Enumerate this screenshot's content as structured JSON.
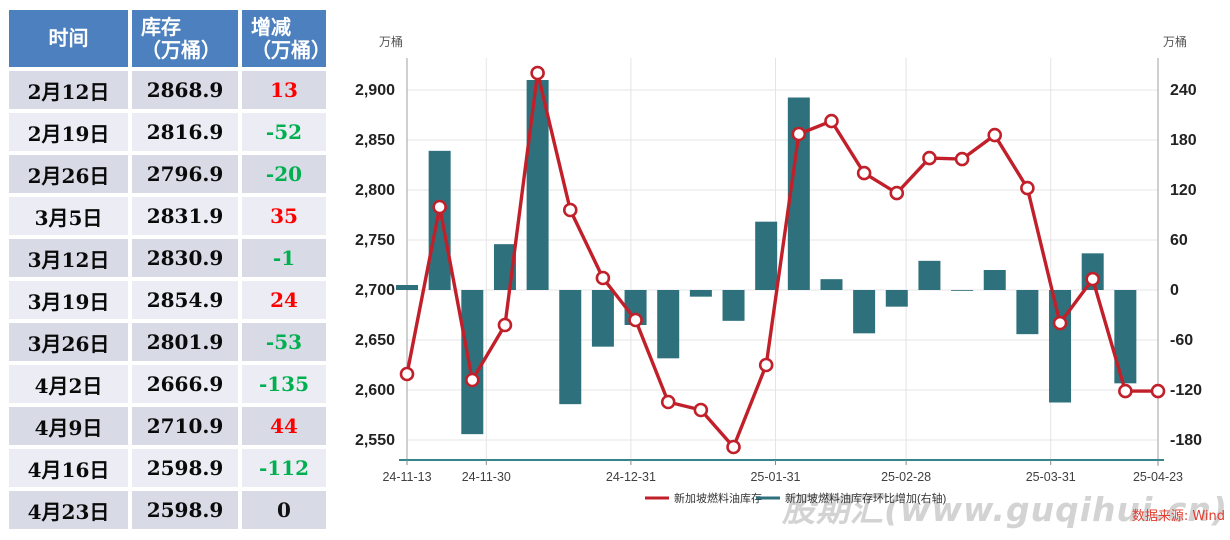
{
  "table": {
    "header": {
      "col1": "时间",
      "col2_line1": "库存",
      "col2_line2": "（万桶）",
      "col3_line1": "增减",
      "col3_line2": "（万桶）"
    },
    "rows": [
      {
        "time": "2月12日",
        "inventory": "2868.9",
        "change": "13"
      },
      {
        "time": "2月19日",
        "inventory": "2816.9",
        "change": "-52"
      },
      {
        "time": "2月26日",
        "inventory": "2796.9",
        "change": "-20"
      },
      {
        "time": "3月5日",
        "inventory": "2831.9",
        "change": "35"
      },
      {
        "time": "3月12日",
        "inventory": "2830.9",
        "change": "-1"
      },
      {
        "time": "3月19日",
        "inventory": "2854.9",
        "change": "24"
      },
      {
        "time": "3月26日",
        "inventory": "2801.9",
        "change": "-53"
      },
      {
        "time": "4月2日",
        "inventory": "2666.9",
        "change": "-135"
      },
      {
        "time": "4月9日",
        "inventory": "2710.9",
        "change": "44"
      },
      {
        "time": "4月16日",
        "inventory": "2598.9",
        "change": "-112"
      },
      {
        "time": "4月23日",
        "inventory": "2598.9",
        "change": "0"
      }
    ]
  },
  "colors": {
    "positive": "#ff0000",
    "negative": "#00b050",
    "zero": "#111111",
    "header_bg": "#4d80be",
    "row_dark": "#d8dae6",
    "row_light": "#ecedf4"
  },
  "chart_data": {
    "type": "line+bar",
    "unit_left": "万桶",
    "unit_right": "万桶",
    "x_tick_labels": [
      "24-11-13",
      "24-11-30",
      "24-12-31",
      "25-01-31",
      "25-02-28",
      "25-03-31",
      "25-04-23"
    ],
    "dates": [
      "24-11-13",
      "24-11-20",
      "24-11-27",
      "24-12-04",
      "24-12-11",
      "24-12-18",
      "24-12-25",
      "25-01-01",
      "25-01-08",
      "25-01-15",
      "25-01-22",
      "25-01-29",
      "25-02-05",
      "25-02-12",
      "25-02-19",
      "25-02-26",
      "25-03-05",
      "25-03-12",
      "25-03-19",
      "25-03-26",
      "25-04-02",
      "25-04-09",
      "25-04-16",
      "25-04-23"
    ],
    "series": [
      {
        "name": "新加坡燃料油库存",
        "type": "line",
        "axis": "left",
        "color": "#c1202a",
        "values": [
          2616,
          2783,
          2610,
          2665,
          2917,
          2780,
          2712,
          2670,
          2588,
          2580,
          2543,
          2625,
          2856,
          2868.9,
          2816.9,
          2796.9,
          2831.9,
          2830.9,
          2854.9,
          2801.9,
          2666.9,
          2710.9,
          2598.9,
          2598.9
        ]
      },
      {
        "name": "新加坡燃料油库存环比增加(右轴)",
        "type": "bar",
        "axis": "right",
        "color": "#2e717c",
        "values": [
          6,
          167,
          -173,
          55,
          252,
          -137,
          -68,
          -42,
          -82,
          -8,
          -37,
          82,
          231,
          13,
          -52,
          -20,
          35,
          -1,
          24,
          -53,
          -135,
          44,
          -112,
          0
        ]
      }
    ],
    "left_axis": {
      "min": 2530,
      "max": 2932,
      "ticks": [
        2550,
        2600,
        2650,
        2700,
        2750,
        2800,
        2850,
        2900
      ]
    },
    "right_axis": {
      "ticks": [
        -180,
        -120,
        -60,
        0,
        60,
        120,
        180,
        240
      ],
      "zero_aligns_with_left": 2700,
      "left_units_per_right_unit": 0.8333
    },
    "legend_position": "bottom",
    "style": {
      "grid": "#e4e4e4",
      "axis": "#a0a0a0",
      "x_axis_line": "#35858c",
      "tick_text": "#222222",
      "x_text": "#404040",
      "unit_text": "#555555",
      "legend_text": "#333333"
    }
  },
  "watermark": {
    "text": "股期汇(www.guqihui.cn)",
    "color": "#d3d3d3"
  },
  "source": {
    "text": "数据来源: Wind",
    "color": "#e23b2e"
  }
}
